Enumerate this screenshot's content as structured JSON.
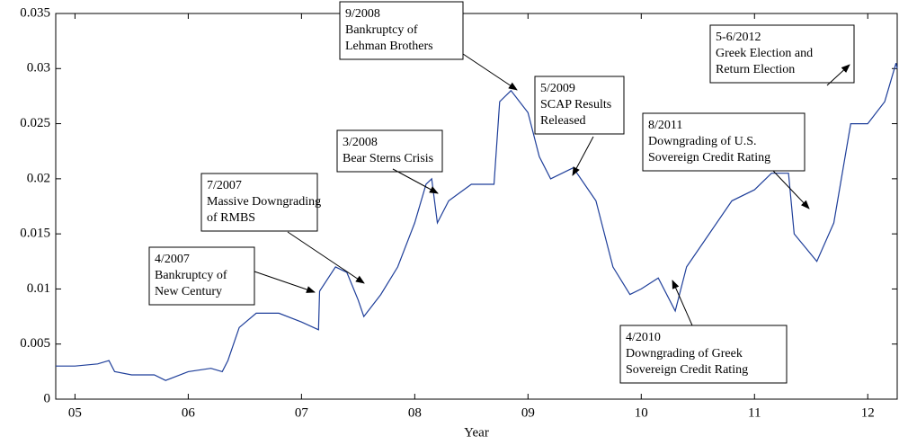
{
  "chart_data": {
    "type": "line",
    "x_label": "Year",
    "xlim": [
      2004.83,
      2012.26
    ],
    "xticks": [
      {
        "value": 2005,
        "label": "05"
      },
      {
        "value": 2006,
        "label": "06"
      },
      {
        "value": 2007,
        "label": "07"
      },
      {
        "value": 2008,
        "label": "08"
      },
      {
        "value": 2009,
        "label": "09"
      },
      {
        "value": 2010,
        "label": "10"
      },
      {
        "value": 2011,
        "label": "11"
      },
      {
        "value": 2012,
        "label": "12"
      }
    ],
    "ylim": [
      0,
      0.035
    ],
    "yticks": [
      0,
      0.005,
      0.01,
      0.015,
      0.02,
      0.025,
      0.03,
      0.035
    ],
    "series": [
      {
        "color": "#1f3f9a",
        "x": [
          2004.83,
          2005.0,
          2005.2,
          2005.3,
          2005.35,
          2005.5,
          2005.7,
          2005.8,
          2006.0,
          2006.2,
          2006.3,
          2006.35,
          2006.45,
          2006.6,
          2006.8,
          2007.0,
          2007.15,
          2007.16,
          2007.3,
          2007.4,
          2007.5,
          2007.55,
          2007.7,
          2007.85,
          2008.0,
          2008.1,
          2008.15,
          2008.2,
          2008.3,
          2008.5,
          2008.7,
          2008.75,
          2008.85,
          2009.0,
          2009.1,
          2009.2,
          2009.4,
          2009.6,
          2009.75,
          2009.9,
          2010.0,
          2010.15,
          2010.3,
          2010.4,
          2010.6,
          2010.8,
          2011.0,
          2011.15,
          2011.3,
          2011.35,
          2011.55,
          2011.7,
          2011.85,
          2012.0,
          2012.15,
          2012.25,
          2012.26
        ],
        "values": [
          0.003,
          0.003,
          0.0032,
          0.0035,
          0.0025,
          0.0022,
          0.0022,
          0.0017,
          0.0025,
          0.0028,
          0.0025,
          0.0035,
          0.0065,
          0.0078,
          0.0078,
          0.007,
          0.0063,
          0.0098,
          0.012,
          0.0115,
          0.009,
          0.0075,
          0.0095,
          0.012,
          0.016,
          0.0195,
          0.02,
          0.016,
          0.018,
          0.0195,
          0.0195,
          0.027,
          0.028,
          0.026,
          0.022,
          0.02,
          0.021,
          0.018,
          0.012,
          0.0095,
          0.01,
          0.011,
          0.008,
          0.012,
          0.015,
          0.018,
          0.019,
          0.0205,
          0.0205,
          0.015,
          0.0125,
          0.016,
          0.025,
          0.025,
          0.027,
          0.0305,
          0.03
        ]
      }
    ],
    "annotations": [
      {
        "lines": [
          "4/2007",
          "Bankruptcy of",
          "New Century"
        ]
      },
      {
        "lines": [
          "7/2007",
          "Massive Downgrading",
          "of RMBS"
        ]
      },
      {
        "lines": [
          "3/2008",
          "Bear Sterns Crisis"
        ]
      },
      {
        "lines": [
          "9/2008",
          "Bankruptcy of",
          "Lehman Brothers"
        ]
      },
      {
        "lines": [
          "5/2009",
          "SCAP Results",
          "Released"
        ]
      },
      {
        "lines": [
          "8/2011",
          "Downgrading of U.S.",
          "Sovereign Credit Rating"
        ]
      },
      {
        "lines": [
          "4/2010",
          "Downgrading of Greek",
          "Sovereign Credit Rating"
        ]
      },
      {
        "lines": [
          "5-6/2012",
          "Greek Election and",
          "Return Election"
        ]
      }
    ]
  }
}
